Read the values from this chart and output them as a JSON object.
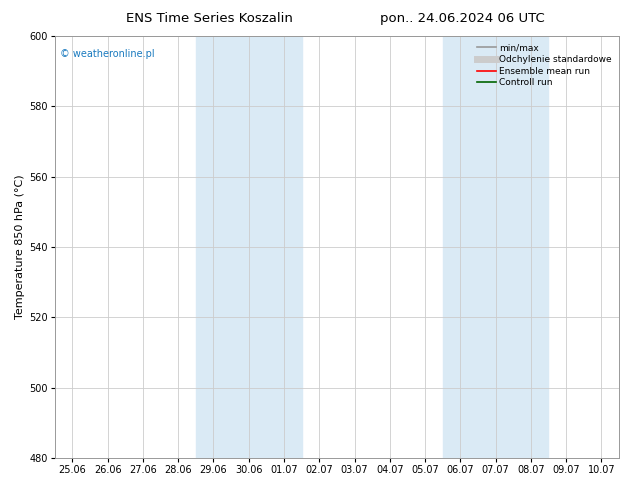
{
  "title_left": "ENS Time Series Koszalin",
  "title_right": "pon.. 24.06.2024 06 UTC",
  "ylabel": "Temperature 850 hPa (°C)",
  "watermark": "© weatheronline.pl",
  "ylim": [
    480,
    600
  ],
  "yticks": [
    480,
    500,
    520,
    540,
    560,
    580,
    600
  ],
  "x_labels": [
    "25.06",
    "26.06",
    "27.06",
    "28.06",
    "29.06",
    "30.06",
    "01.07",
    "02.07",
    "03.07",
    "04.07",
    "05.07",
    "06.07",
    "07.07",
    "08.07",
    "09.07",
    "10.07"
  ],
  "shaded_regions": [
    {
      "xstart": 4,
      "xend": 6
    },
    {
      "xstart": 11,
      "xend": 13
    }
  ],
  "shaded_color": "#daeaf5",
  "background_color": "#ffffff",
  "grid_color": "#cccccc",
  "title_fontsize": 9.5,
  "ylabel_fontsize": 8,
  "tick_fontsize": 7,
  "watermark_color": "#1a7abf",
  "legend_entries": [
    {
      "label": "min/max",
      "color": "#999999",
      "lw": 1.2,
      "style": "solid"
    },
    {
      "label": "Odchylenie standardowe",
      "color": "#cccccc",
      "lw": 5,
      "style": "solid"
    },
    {
      "label": "Ensemble mean run",
      "color": "#ff0000",
      "lw": 1.2,
      "style": "solid"
    },
    {
      "label": "Controll run",
      "color": "#006400",
      "lw": 1.2,
      "style": "solid"
    }
  ]
}
